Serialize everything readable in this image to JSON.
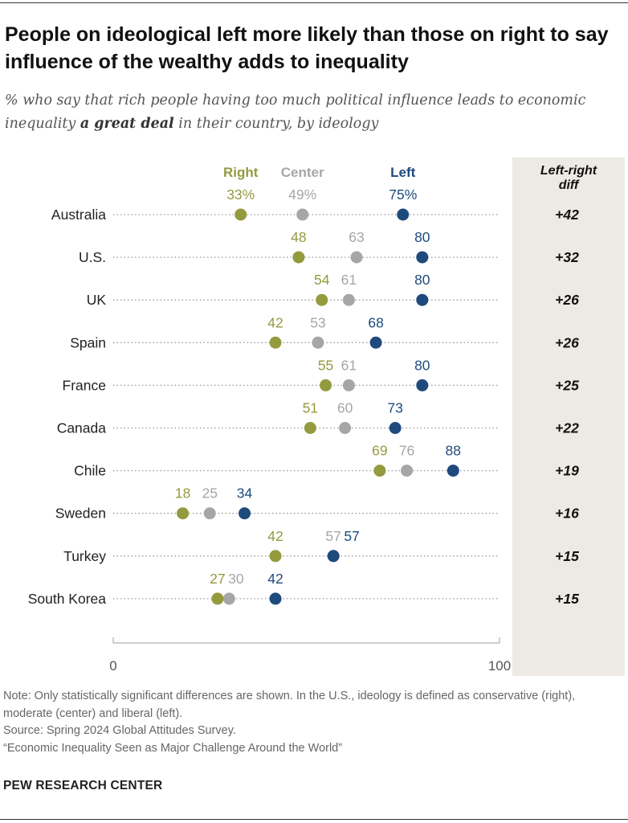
{
  "header": {
    "title": "People on ideological left more likely than those on right to say influence of the wealthy adds to inequality",
    "subtitle_pre": "% who say that rich people having too much political influence leads to economic inequality ",
    "subtitle_bold": "a great deal",
    "subtitle_post": " in their country, by ideology"
  },
  "chart_data": {
    "type": "dot-plot",
    "title": "People on ideological left more likely than those on right to say influence of the wealthy adds to inequality",
    "xlim": [
      0,
      100
    ],
    "x_ticks": [
      "0",
      "100"
    ],
    "legend": [
      {
        "key": "right",
        "name": "Right",
        "color": "#949A3E"
      },
      {
        "key": "center",
        "name": "Center",
        "color": "#A6A6A6"
      },
      {
        "key": "left",
        "name": "Left",
        "color": "#1F4A7E"
      }
    ],
    "diff_header_line1": "Left-right",
    "diff_header_line2": "diff",
    "categories": [
      "Australia",
      "U.S.",
      "UK",
      "Spain",
      "France",
      "Canada",
      "Chile",
      "Sweden",
      "Turkey",
      "South Korea"
    ],
    "series": [
      {
        "name": "Right",
        "values": [
          33,
          48,
          54,
          42,
          55,
          51,
          69,
          18,
          42,
          27
        ]
      },
      {
        "name": "Center",
        "values": [
          49,
          63,
          61,
          53,
          61,
          60,
          76,
          25,
          57,
          30
        ]
      },
      {
        "name": "Left",
        "values": [
          75,
          80,
          80,
          68,
          80,
          73,
          88,
          34,
          57,
          42
        ]
      }
    ],
    "value_labels": {
      "right": [
        "33%",
        "48",
        "54",
        "42",
        "55",
        "51",
        "69",
        "18",
        "42",
        "27"
      ],
      "center": [
        "49%",
        "63",
        "61",
        "53",
        "61",
        "60",
        "76",
        "25",
        "57",
        "30"
      ],
      "left": [
        "75%",
        "80",
        "80",
        "68",
        "80",
        "73",
        "88",
        "34",
        "57",
        "42"
      ]
    },
    "diffs": [
      "+42",
      "+32",
      "+26",
      "+26",
      "+25",
      "+22",
      "+19",
      "+16",
      "+15",
      "+15"
    ]
  },
  "notes": {
    "note": "Note: Only statistically significant differences are shown. In the U.S., ideology is defined as conservative (right), moderate (center) and liberal (left).",
    "source": "Source: Spring 2024 Global Attitudes Survey.",
    "report": "“Economic Inequality Seen as Major Challenge Around the World”",
    "credit": "PEW RESEARCH CENTER"
  }
}
